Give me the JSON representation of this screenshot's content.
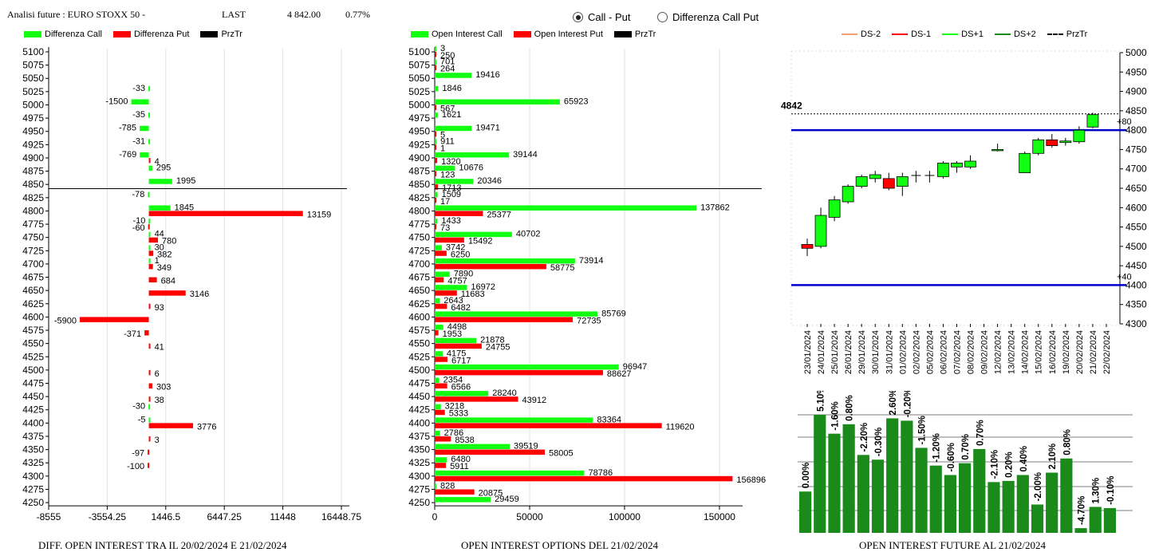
{
  "header": {
    "title": "Analisi future : EURO STOXX 50 -",
    "last_label": "LAST",
    "last_value": "4 842.00",
    "change": "0.77%"
  },
  "mode": {
    "options": [
      "Call - Put",
      "Differenza Call Put"
    ],
    "selected": "Call - Put"
  },
  "colors": {
    "green": "#12ff12",
    "red": "#ff0000",
    "dark_green": "#1a8a1a",
    "blue": "#0000cc"
  },
  "chart_data": [
    {
      "type": "bar",
      "orientation": "horizontal",
      "title": "DIFF. OPEN INTEREST TRA IL 20/02/2024 E 21/02/2024",
      "legend": [
        "Differenza Call",
        "Differenza Put",
        "PrzTr"
      ],
      "categories": [
        "5100",
        "5075",
        "5050",
        "5025",
        "5000",
        "4975",
        "4950",
        "4925",
        "4900",
        "4875",
        "4850",
        "4825",
        "4800",
        "4775",
        "4750",
        "4725",
        "4700",
        "4675",
        "4650",
        "4625",
        "4600",
        "4575",
        "4550",
        "4525",
        "4500",
        "4475",
        "4450",
        "4425",
        "4400",
        "4375",
        "4350",
        "4325",
        "4300",
        "4275",
        "4250"
      ],
      "series": [
        {
          "name": "Differenza Call",
          "values": [
            null,
            null,
            null,
            -33,
            -1500,
            -35,
            -785,
            -31,
            -769,
            295,
            1995,
            -78,
            1845,
            -10,
            44,
            30,
            1,
            null,
            null,
            null,
            null,
            null,
            null,
            null,
            null,
            null,
            null,
            -30,
            -5,
            null,
            null,
            null,
            null,
            null,
            null
          ]
        },
        {
          "name": "Differenza Put",
          "values": [
            null,
            null,
            null,
            null,
            null,
            null,
            null,
            null,
            4,
            null,
            null,
            null,
            13159,
            -60,
            780,
            382,
            349,
            684,
            3146,
            93,
            -5900,
            -371,
            41,
            null,
            6,
            303,
            38,
            null,
            3776,
            3,
            -97,
            -100,
            null,
            null,
            null
          ]
        }
      ],
      "xticks": [
        "-8555",
        "-3554.25",
        "1446.5",
        "6447.25",
        "11448",
        "16448.75"
      ],
      "xlim": [
        -8555,
        16448.75
      ],
      "price_line": "4842"
    },
    {
      "type": "bar",
      "orientation": "horizontal",
      "title": "OPEN INTEREST OPTIONS DEL 21/02/2024",
      "legend": [
        "Open Interest Call",
        "Open Interest Put",
        "PrzTr"
      ],
      "categories": [
        "5100",
        "5075",
        "5050",
        "5025",
        "5000",
        "4975",
        "4950",
        "4925",
        "4900",
        "4875",
        "4850",
        "4825",
        "4800",
        "4775",
        "4750",
        "4725",
        "4700",
        "4675",
        "4650",
        "4625",
        "4600",
        "4575",
        "4550",
        "4525",
        "4500",
        "4475",
        "4450",
        "4425",
        "4400",
        "4375",
        "4350",
        "4325",
        "4300",
        "4275",
        "4250"
      ],
      "series": [
        {
          "name": "Open Interest Call",
          "values": [
            3,
            701,
            19416,
            1846,
            65923,
            1621,
            19471,
            911,
            39144,
            10676,
            20346,
            1509,
            137862,
            1433,
            40702,
            3742,
            73914,
            7890,
            16972,
            2643,
            85769,
            4498,
            21878,
            4175,
            96947,
            2354,
            28240,
            3218,
            83364,
            2786,
            39519,
            6480,
            78786,
            828,
            29459
          ]
        },
        {
          "name": "Open Interest Put",
          "values": [
            250,
            264,
            null,
            null,
            567,
            null,
            5,
            1,
            1320,
            123,
            1713,
            17,
            25377,
            73,
            15492,
            6250,
            58775,
            4757,
            11683,
            6482,
            72735,
            1953,
            24755,
            6717,
            88627,
            6566,
            43912,
            5333,
            119620,
            8538,
            58005,
            5911,
            156896,
            20875,
            null
          ]
        }
      ],
      "xticks": [
        "0",
        "50000",
        "100000",
        "150000"
      ],
      "xlim": [
        0,
        158000
      ],
      "price_line": "4842"
    },
    {
      "type": "candlestick",
      "legend": [
        "DS-2",
        "DS-1",
        "DS+1",
        "DS+2",
        "PrzTr"
      ],
      "dates": [
        "23/01/2024",
        "24/01/2024",
        "25/01/2024",
        "26/01/2024",
        "29/01/2024",
        "30/01/2024",
        "31/01/2024",
        "01/02/2024",
        "02/02/2024",
        "05/02/2024",
        "06/02/2024",
        "07/02/2024",
        "08/02/2024",
        "09/02/2024",
        "12/02/2024",
        "13/02/2024",
        "14/02/2024",
        "15/02/2024",
        "16/02/2024",
        "19/02/2024",
        "20/02/2024",
        "21/02/2024",
        "22/02/2024"
      ],
      "open": [
        4505,
        4500,
        4575,
        4615,
        4655,
        4675,
        4675,
        4655,
        null,
        null,
        4680,
        4705,
        4705,
        null,
        4750,
        null,
        4690,
        4740,
        4775,
        4768,
        4770,
        4808,
        null
      ],
      "close": [
        4495,
        4580,
        4620,
        4655,
        4680,
        4685,
        4650,
        4680,
        4683,
        4683,
        4715,
        4715,
        4720,
        null,
        4750,
        null,
        4740,
        4775,
        4760,
        4772,
        4800,
        4840,
        null
      ],
      "high": [
        4520,
        4600,
        4630,
        4660,
        4685,
        4695,
        4690,
        4690,
        4695,
        4695,
        4720,
        4720,
        4735,
        null,
        4765,
        null,
        4745,
        4780,
        4790,
        4780,
        4810,
        4845,
        null
      ],
      "low": [
        4475,
        4495,
        4565,
        4610,
        4650,
        4665,
        4645,
        4630,
        4665,
        4665,
        4675,
        4690,
        4700,
        null,
        4745,
        null,
        4690,
        4735,
        4755,
        4760,
        4765,
        4805,
        null
      ],
      "yticks": [
        "5000",
        "4950",
        "4900",
        "4850",
        "4800",
        "4750",
        "4700",
        "4650",
        "4600",
        "4550",
        "4500",
        "4450",
        "4400",
        "4350",
        "4300"
      ],
      "ylim": [
        4300,
        5000
      ],
      "price_label": "4842",
      "levels": [
        {
          "value": 4800,
          "label": "+80"
        },
        {
          "value": 4400,
          "label": "+40"
        }
      ]
    },
    {
      "type": "bar",
      "title": "OPEN INTEREST FUTURE AL 21/02/2024",
      "labels": [
        "0.00%",
        "5.10%",
        "-1.60%",
        "0.80%",
        "-2.20%",
        "-0.30%",
        "2.60%",
        "-0.20%",
        "-1.50%",
        "-1.20%",
        "-0.60%",
        "0.70%",
        "0.70%",
        "-2.10%",
        "0.20%",
        "0.40%",
        "-2.00%",
        "2.10%",
        "0.80%",
        "-4.70%",
        "1.30%",
        "-0.10%"
      ],
      "values": [
        0.35,
        1.0,
        0.84,
        0.92,
        0.66,
        0.62,
        0.97,
        0.95,
        0.72,
        0.57,
        0.49,
        0.59,
        0.71,
        0.43,
        0.44,
        0.49,
        0.24,
        0.51,
        0.63,
        0.04,
        0.22,
        0.21
      ]
    }
  ]
}
